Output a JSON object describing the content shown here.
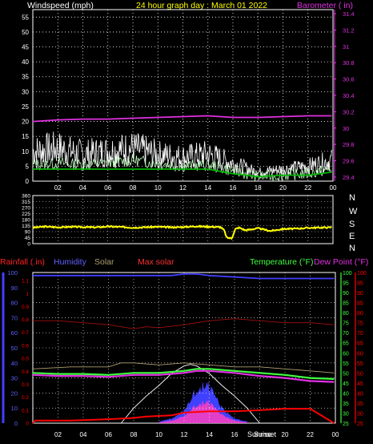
{
  "header": {
    "wind_title": "Windspeed (mph)",
    "date_title": "24 hour graph day : March 01 2022",
    "baro_title": "Barometer ( in)"
  },
  "middle": {
    "direction_letters": [
      "N",
      "W",
      "S",
      "E",
      "N"
    ]
  },
  "bottom_header": {
    "rain": "Rainfall (.in)",
    "humidity": "Humidity",
    "solar": "Solar",
    "max_solar": "Max solar",
    "temperature": "Temperature (°F)",
    "dew_point": "Dew Point (°F)"
  },
  "sun_labels": {
    "rise": "Sunrise",
    "set": "Sunset"
  },
  "colors": {
    "wind": "#ffffff",
    "gust": "#c0ffc0",
    "wind_avg": "#00c000",
    "barometer": "#e030e0",
    "direction": "#ffff00",
    "rain": "#ff0000",
    "humidity": "#4040ff",
    "solar_fill": "#4040ff",
    "solar_core": "#ff40c0",
    "max_solar": "#ffffff",
    "temperature": "#40ff40",
    "dew_point": "#e030e0",
    "max_solar_label": "#ff3030",
    "solar_label": "#b0a070"
  },
  "chart_data": [
    {
      "type": "line",
      "title": "24 hour graph day : March 01 2022",
      "x_ticks": [
        "02",
        "04",
        "06",
        "08",
        "10",
        "12",
        "14",
        "16",
        "18",
        "20",
        "22",
        "00"
      ],
      "left_axis": {
        "label": "Windspeed (mph)",
        "range": [
          0,
          57.5
        ],
        "ticks": [
          0,
          5,
          10,
          15,
          20,
          25,
          30,
          35,
          40,
          45,
          50,
          55
        ]
      },
      "right_axis": {
        "label": "Barometer ( in)",
        "range": [
          29.35,
          31.45
        ],
        "ticks": [
          "29.4",
          "29.6",
          "29.8",
          "30",
          "30.2",
          "30.4",
          "30.6",
          "30.8",
          "31",
          "31.2",
          "31.4"
        ]
      },
      "grid": true,
      "series": [
        {
          "name": "Barometer",
          "axis": "right",
          "x": [
            0,
            2,
            4,
            6,
            8,
            10,
            12,
            14,
            16,
            18,
            20,
            22,
            23.9
          ],
          "y": [
            30.08,
            30.1,
            30.11,
            30.11,
            30.12,
            30.13,
            30.14,
            30.15,
            30.13,
            30.13,
            30.14,
            30.15,
            30.15
          ]
        },
        {
          "name": "",
          "axis": "left",
          "x": [
            0,
            2,
            4,
            6,
            8,
            10,
            12,
            14,
            16,
            18,
            20,
            22,
            23.9
          ],
          "y": [
            10,
            11,
            9,
            10,
            11,
            9,
            8,
            9,
            6,
            3,
            4,
            5,
            7
          ]
        },
        {
          "name": "",
          "axis": "left",
          "x": [
            0,
            2,
            4,
            6,
            8,
            10,
            12,
            14,
            16,
            18,
            20,
            22,
            23.9
          ],
          "y": [
            4,
            4,
            4,
            4,
            4,
            4,
            4,
            4,
            2.5,
            1.5,
            2,
            2,
            3
          ]
        },
        {
          "name": "",
          "axis": "left",
          "x": [
            0,
            2,
            4,
            6,
            8,
            10,
            12,
            14,
            16,
            18,
            20,
            22,
            23.9
          ],
          "y": [
            5.5,
            6,
            5.5,
            6,
            7,
            6,
            5,
            5.5,
            3.5,
            1.5,
            2,
            2.5,
            4
          ]
        }
      ]
    },
    {
      "type": "line",
      "left_axis": {
        "range": [
          0,
          360
        ],
        "ticks": [
          0,
          45,
          90,
          135,
          180,
          225,
          270,
          315,
          360
        ]
      },
      "right_axis": {
        "ticks": [
          "N",
          "W",
          "S",
          "E",
          "N"
        ]
      },
      "grid": true,
      "series": [
        {
          "name": "Wind direction",
          "x": [
            0,
            1,
            2,
            3,
            4,
            5,
            6,
            7,
            8,
            9,
            10,
            11,
            12,
            13,
            14,
            15,
            15.3,
            15.5,
            15.9,
            16.2,
            16.5,
            17,
            18,
            19,
            20,
            21,
            22,
            23,
            23.9
          ],
          "y": [
            120,
            128,
            122,
            126,
            124,
            122,
            128,
            125,
            120,
            123,
            126,
            122,
            124,
            130,
            127,
            124,
            100,
            45,
            40,
            110,
            120,
            100,
            115,
            95,
            110,
            112,
            118,
            120,
            122
          ]
        }
      ]
    },
    {
      "type": "line",
      "x_ticks": [
        "02",
        "04",
        "06",
        "08",
        "10",
        "12",
        "14",
        "16",
        "18",
        "20",
        "22",
        "00"
      ],
      "axes": {
        "rain": {
          "label": "Rainfall (.in)",
          "ticks": [
            "0",
            "0.1",
            "0.2",
            "0.3",
            "0.4",
            "0.5",
            "0.6",
            "0.7",
            "0.8",
            "0.9",
            "1",
            "1.1"
          ]
        },
        "humidity": {
          "label": "Humidity",
          "range": [
            0,
            100
          ],
          "ticks": [
            0,
            10,
            20,
            30,
            40,
            50,
            60,
            70,
            80,
            90,
            100
          ]
        },
        "temperature": {
          "label": "Temperature (°F)",
          "range": [
            25,
            100
          ],
          "ticks": [
            25,
            30,
            35,
            40,
            45,
            50,
            55,
            60,
            65,
            70,
            75,
            80,
            85,
            90,
            95,
            100
          ]
        },
        "dew_point": {
          "label": "Dew Point (°F)",
          "range": [
            25,
            100
          ],
          "ticks": [
            25,
            30,
            35,
            40,
            45,
            50,
            55,
            60,
            65,
            70,
            75,
            80,
            85,
            90,
            95,
            100
          ]
        }
      },
      "grid": true,
      "sunrise": "Sunrise",
      "sunset": "Sunset",
      "series": [
        {
          "name": "Humidity",
          "x": [
            0,
            2,
            4,
            6,
            8,
            10,
            11,
            12,
            13,
            14,
            16,
            18,
            20,
            22,
            23.9
          ],
          "y": [
            98,
            98,
            98,
            98,
            98,
            98,
            98,
            99,
            99,
            98,
            97,
            96,
            96,
            96,
            96
          ]
        },
        {
          "name": "Rainfall",
          "x": [
            0,
            0.2,
            1,
            3,
            6,
            8,
            9,
            11,
            12,
            14,
            16,
            18,
            20,
            22,
            23.9
          ],
          "y": [
            0,
            0.02,
            0.02,
            0.02,
            0.03,
            0.04,
            0.05,
            0.06,
            0.08,
            0.09,
            0.09,
            0.1,
            0.11,
            0.11,
            0
          ]
        },
        {
          "name": "Temperature",
          "x": [
            0,
            2,
            4,
            6,
            8,
            10,
            12,
            13,
            14,
            16,
            18,
            20,
            22,
            23.9
          ],
          "y": [
            50,
            49.5,
            49.5,
            49,
            50,
            50,
            51,
            52,
            52,
            51,
            50,
            49,
            47.5,
            47
          ]
        },
        {
          "name": "Dew Point",
          "x": [
            0,
            2,
            4,
            6,
            8,
            10,
            12,
            13,
            14,
            16,
            18,
            20,
            22,
            23.9
          ],
          "y": [
            49,
            48.5,
            48.5,
            48,
            49,
            49,
            50,
            51,
            51,
            50,
            48.5,
            47.5,
            46,
            45.5
          ]
        },
        {
          "name": "Solar",
          "x": [
            0,
            3,
            6,
            7,
            8,
            10,
            12,
            14,
            16,
            18,
            20,
            22,
            23.9
          ],
          "y": [
            52,
            53,
            53,
            55,
            55,
            54,
            55,
            54,
            53,
            53,
            52,
            51,
            50
          ]
        },
        {
          "name": "Max solar",
          "x": [
            7,
            8,
            9,
            10,
            11,
            12,
            12.5,
            13,
            14,
            15,
            16,
            17,
            18
          ],
          "y": [
            0,
            10,
            18,
            25,
            33,
            38,
            39,
            38,
            33,
            25,
            18,
            10,
            0
          ]
        },
        {
          "name": "Max solar temp",
          "x": [
            0,
            2,
            4,
            6,
            7,
            8,
            9,
            10,
            12,
            14,
            16,
            18,
            20,
            22,
            23.9
          ],
          "y": [
            76,
            76,
            75,
            74,
            73,
            72,
            73,
            72.5,
            74,
            76,
            77,
            76,
            75,
            75,
            74
          ]
        },
        {
          "name": "Solar fill",
          "x": [
            10,
            11,
            12,
            12.5,
            13,
            13.5,
            14,
            14.5,
            15,
            16,
            17
          ],
          "y": [
            1,
            3,
            8,
            16,
            22,
            25,
            24,
            18,
            10,
            3,
            1
          ]
        }
      ]
    }
  ]
}
